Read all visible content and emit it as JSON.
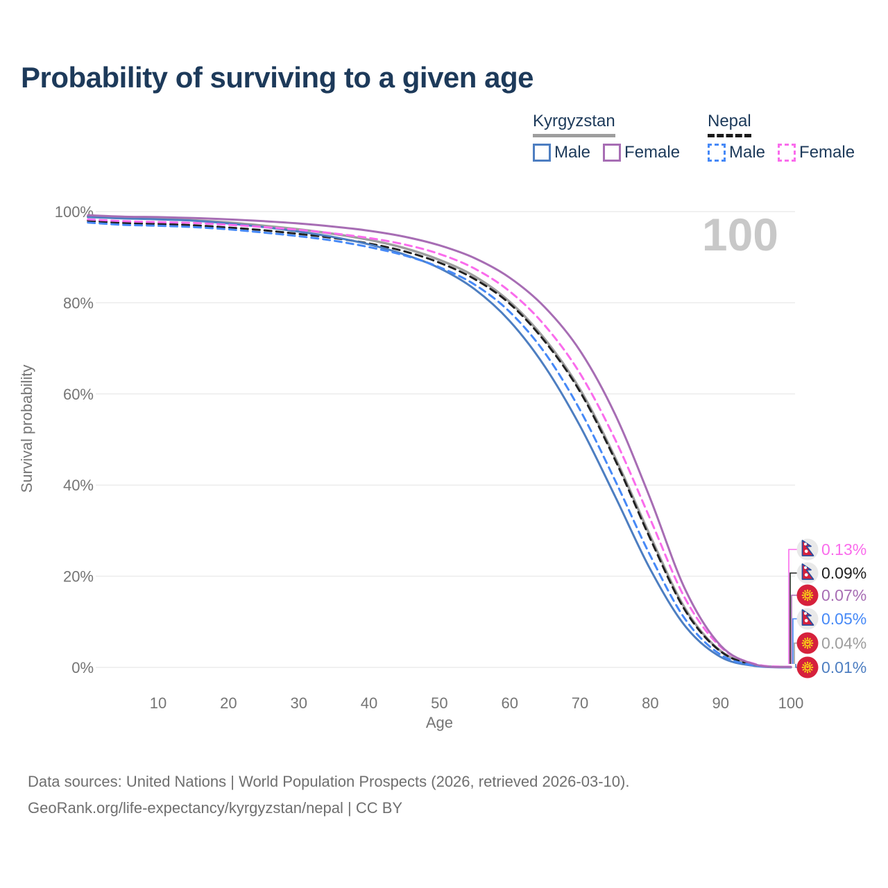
{
  "header": {
    "title": "Probability of surviving to a given age"
  },
  "legend": {
    "groups": [
      {
        "label": "Kyrgyzstan",
        "line_style": "solid",
        "underline_color": "#9e9e9e",
        "items": [
          {
            "label": "Male",
            "color": "#4d7ec1"
          },
          {
            "label": "Female",
            "color": "#a76db4"
          }
        ]
      },
      {
        "label": "Nepal",
        "line_style": "dashed",
        "underline_color": "#1a1a1a",
        "items": [
          {
            "label": "Male",
            "color": "#4689f7"
          },
          {
            "label": "Female",
            "color": "#fa6cec"
          }
        ]
      }
    ]
  },
  "chart_data": {
    "type": "line",
    "title": "Probability of surviving to a given age",
    "xlabel": "Age",
    "ylabel": "Survival probability",
    "xlim": [
      0,
      103
    ],
    "ylim": [
      0,
      100
    ],
    "grid": "horizontal",
    "legend_position": "top-right",
    "watermark": "100",
    "x_ticks": [
      10,
      20,
      30,
      40,
      50,
      60,
      70,
      80,
      90,
      100
    ],
    "y_ticks": [
      "0%",
      "20%",
      "40%",
      "60%",
      "80%",
      "100%"
    ],
    "x": [
      0,
      5,
      10,
      15,
      20,
      25,
      30,
      35,
      40,
      45,
      50,
      55,
      60,
      65,
      70,
      75,
      80,
      85,
      90,
      95,
      100
    ],
    "series": [
      {
        "id": "kyrgyzstan-all",
        "name": "Kyrgyzstan",
        "country": "kyrgyzstan",
        "color": "#9e9e9e",
        "dash": false,
        "width": 3.5,
        "end_label": "0.04%",
        "flag": "kyrgyzstan",
        "values": [
          98.9,
          98.6,
          98.4,
          98.1,
          97.6,
          96.9,
          96.1,
          95.1,
          93.8,
          92.0,
          89.4,
          85.8,
          80.2,
          72.0,
          61.0,
          46.0,
          28.8,
          12.8,
          3.6,
          0.5,
          0.04
        ]
      },
      {
        "id": "nepal-all",
        "name": "Nepal",
        "country": "nepal",
        "color": "#212121",
        "dash": true,
        "width": 3,
        "end_label": "0.09%",
        "flag": "nepal",
        "values": [
          98.0,
          97.5,
          97.3,
          97.0,
          96.5,
          95.9,
          95.1,
          94.2,
          93.0,
          91.3,
          88.8,
          85.2,
          79.8,
          71.5,
          60.5,
          45.5,
          28.2,
          12.4,
          3.5,
          0.5,
          0.09
        ]
      },
      {
        "id": "kyrgyzstan-male",
        "name": "Kyrgyzstan Male",
        "country": "kyrgyzstan",
        "color": "#4d7ec1",
        "dash": false,
        "width": 3,
        "end_label": "0.01%",
        "flag": "kyrgyzstan",
        "values": [
          98.8,
          98.5,
          98.3,
          98.0,
          97.4,
          96.6,
          95.6,
          94.4,
          92.8,
          90.6,
          87.6,
          83.0,
          76.0,
          66.0,
          53.0,
          37.5,
          21.5,
          9.0,
          2.3,
          0.3,
          0.01
        ]
      },
      {
        "id": "nepal-male",
        "name": "Nepal Male",
        "country": "nepal",
        "color": "#4689f7",
        "dash": true,
        "width": 3,
        "end_label": "0.05%",
        "flag": "nepal",
        "values": [
          97.6,
          97.1,
          96.9,
          96.6,
          96.1,
          95.4,
          94.6,
          93.6,
          92.2,
          90.4,
          87.8,
          84.0,
          78.0,
          69.0,
          56.5,
          41.0,
          24.5,
          10.5,
          2.8,
          0.4,
          0.05
        ]
      },
      {
        "id": "nepal-female",
        "name": "Nepal Female",
        "country": "nepal",
        "color": "#fa6cec",
        "dash": true,
        "width": 3,
        "end_label": "0.13%",
        "flag": "nepal",
        "values": [
          98.3,
          97.9,
          97.7,
          97.5,
          97.1,
          96.6,
          96.0,
          95.2,
          94.2,
          92.8,
          90.7,
          87.5,
          82.5,
          75.0,
          64.5,
          50.0,
          32.5,
          15.0,
          4.5,
          0.7,
          0.13
        ]
      },
      {
        "id": "kyrgyzstan-female",
        "name": "Kyrgyzstan Female",
        "country": "kyrgyzstan",
        "color": "#a76db4",
        "dash": false,
        "width": 3,
        "end_label": "0.07%",
        "flag": "kyrgyzstan",
        "values": [
          99.2,
          98.9,
          98.8,
          98.6,
          98.3,
          97.9,
          97.4,
          96.7,
          95.8,
          94.5,
          92.6,
          89.8,
          85.5,
          79.0,
          69.5,
          55.5,
          37.0,
          17.0,
          4.8,
          0.6,
          0.07
        ]
      }
    ],
    "flag_colors": {
      "crimson": "#d6213c",
      "nepal_border": "#2b4b9e",
      "kyrgyz_sun": "#f9d616",
      "circle_bg": "#e9e9e9"
    }
  },
  "footer": {
    "line1": "Data sources: United Nations | World Population Prospects (2026, retrieved 2026-03-10).",
    "line2": "GeoRank.org/life-expectancy/kyrgyzstan/nepal | CC BY"
  }
}
